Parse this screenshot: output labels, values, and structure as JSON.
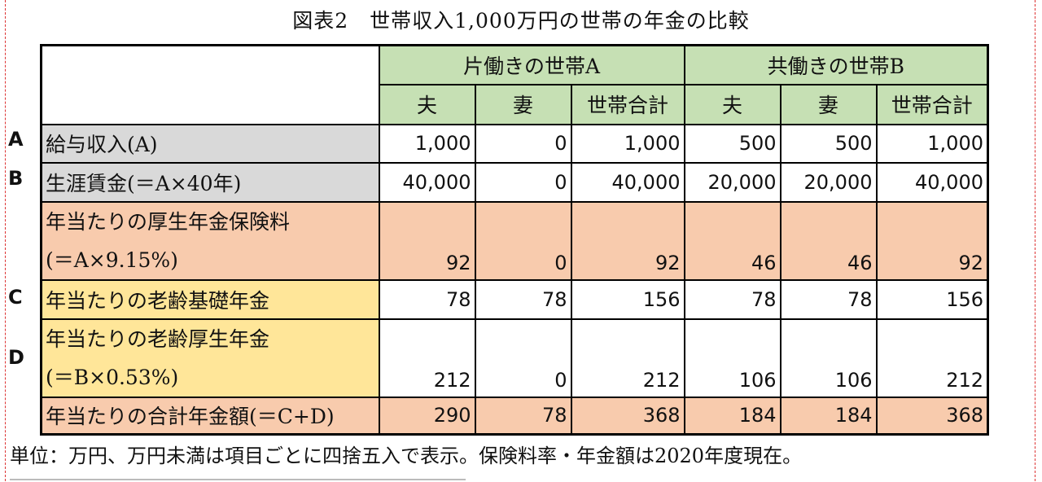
{
  "title": "図表2　世帯収入1,000万円の世帯の年金の比較",
  "groups": {
    "a": "片働きの世帯A",
    "b": "共働きの世帯B"
  },
  "sub_headers": {
    "husband": "夫",
    "wife": "妻",
    "total": "世帯合計"
  },
  "rows": [
    {
      "letter": "A",
      "label": "給与収入(A)",
      "label2": "",
      "values": [
        "1,000",
        "0",
        "1,000",
        "500",
        "500",
        "1,000"
      ]
    },
    {
      "letter": "B",
      "label": "生涯賃金(＝A×40年)",
      "label2": "",
      "values": [
        "40,000",
        "0",
        "40,000",
        "20,000",
        "20,000",
        "40,000"
      ]
    },
    {
      "letter": "",
      "label": "年当たりの厚生年金保険料",
      "label2": "(＝A×9.15%)",
      "values": [
        "92",
        "0",
        "92",
        "46",
        "46",
        "92"
      ]
    },
    {
      "letter": "C",
      "label": "年当たりの老齢基礎年金",
      "label2": "",
      "values": [
        "78",
        "78",
        "156",
        "78",
        "78",
        "156"
      ]
    },
    {
      "letter": "D",
      "label": "年当たりの老齢厚生年金",
      "label2": "(＝B×0.53%)",
      "values": [
        "212",
        "0",
        "212",
        "106",
        "106",
        "212"
      ]
    },
    {
      "letter": "",
      "label": "年当たりの合計年金額(＝C+D)",
      "label2": "",
      "values": [
        "290",
        "78",
        "368",
        "184",
        "184",
        "368"
      ]
    }
  ],
  "footnote": "単位：万円、万円未満は項目ごとに四捨五入で表示。保険料率・年金額は2020年度現在。",
  "colors": {
    "header_green": "#c6e0b4",
    "label_gray": "#d9d9d9",
    "peach": "#f8cbad",
    "yellow": "#ffe699"
  }
}
